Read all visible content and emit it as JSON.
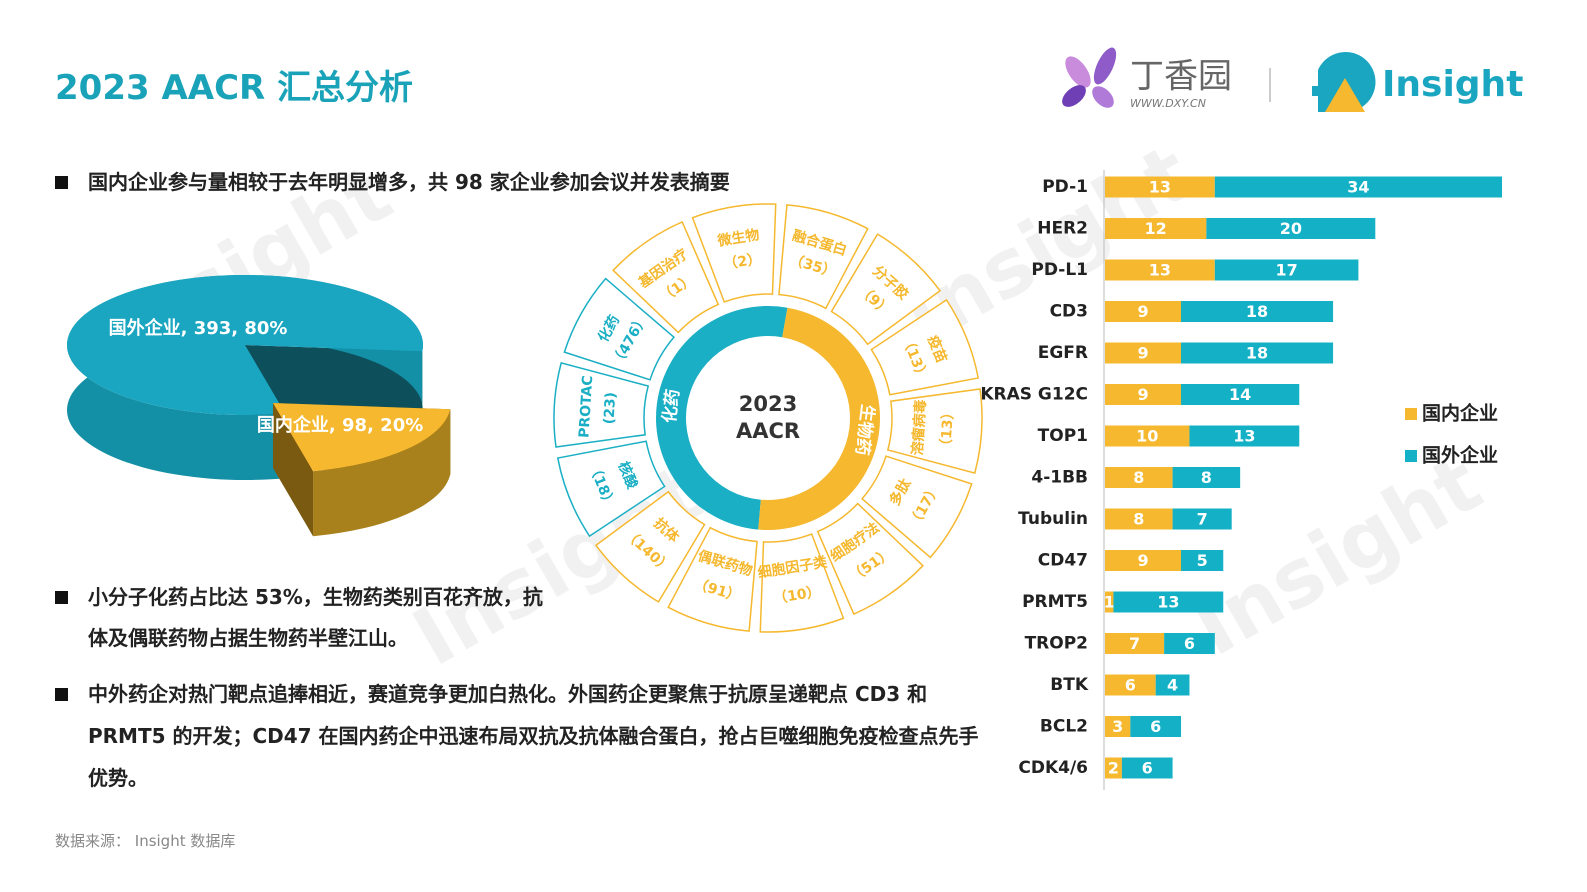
{
  "header": {
    "title": "2023 AACR 汇总分析",
    "logo_dxy": "丁香园",
    "logo_dxy_url": "WWW.DXY.CN",
    "logo_insight": "Insight"
  },
  "bullets": [
    "国内企业参与量相较于去年明显增多，共 98 家企业参加会议并发表摘要",
    "小分子化药占比达 53%，生物药类别百花齐放，抗体及偶联药物占据生物药半壁江山。",
    "中外药企对热门靶点追捧相近，赛道竞争更加白热化。外国药企更聚焦于抗原呈递靶点 CD3 和 PRMT5 的开发；CD47 在国内药企中迅速布局双抗及抗体融合蛋白，抢占巨噬细胞免疫检查点先手优势。"
  ],
  "source": "数据来源： Insight 数据库",
  "watermark": "Insight",
  "chart_data": [
    {
      "type": "pie",
      "style": "3d",
      "categories": [
        "国外企业",
        "国内企业"
      ],
      "values": [
        393,
        98
      ],
      "value_labels": [
        "国外企业, 393, 80%",
        "国内企业, 98, 20%"
      ],
      "colors": [
        "#1AA6C0",
        "#F5B82E"
      ]
    },
    {
      "type": "sunburst",
      "center_lines": [
        "2023",
        "AACR"
      ],
      "groups": [
        {
          "name": "化药",
          "color": "#1AAFC4",
          "names": [
            "核酸",
            "PROTAC",
            "化药"
          ],
          "values": [
            18,
            23,
            476
          ],
          "value_labels": [
            "（18）",
            "(23)",
            "（476）"
          ]
        },
        {
          "name": "生物药",
          "color": "#F5B82E",
          "names": [
            "基因治疗",
            "微生物",
            "融合蛋白",
            "分子胶",
            "疫苗",
            "溶瘤病毒",
            "多肽",
            "细胞疗法",
            "细胞因子类",
            "偶联药物",
            "抗体"
          ],
          "values": [
            1,
            2,
            35,
            9,
            13,
            13,
            17,
            51,
            10,
            91,
            140
          ],
          "value_labels": [
            "（1）",
            "（2）",
            "（35）",
            "（9）",
            "（13）",
            "（13）",
            "（17）",
            "（51）",
            "（10）",
            "（91）",
            "（140）"
          ]
        }
      ]
    },
    {
      "type": "bar",
      "orientation": "horizontal",
      "stacked": true,
      "legend": "right",
      "categories": [
        "PD-1",
        "HER2",
        "PD-L1",
        "CD3",
        "EGFR",
        "KRAS G12C",
        "TOP1",
        "4-1BB",
        "Tubulin",
        "CD47",
        "PRMT5",
        "TROP2",
        "BTK",
        "BCL2",
        "CDK4/6"
      ],
      "series": [
        {
          "name": "国内企业",
          "color": "#F5B82E",
          "values": [
            13,
            12,
            13,
            9,
            9,
            9,
            10,
            8,
            8,
            9,
            1,
            7,
            6,
            3,
            2
          ]
        },
        {
          "name": "国外企业",
          "color": "#14B0C6",
          "values": [
            34,
            20,
            17,
            18,
            18,
            14,
            13,
            8,
            7,
            5,
            13,
            6,
            4,
            6,
            6
          ]
        }
      ]
    }
  ]
}
